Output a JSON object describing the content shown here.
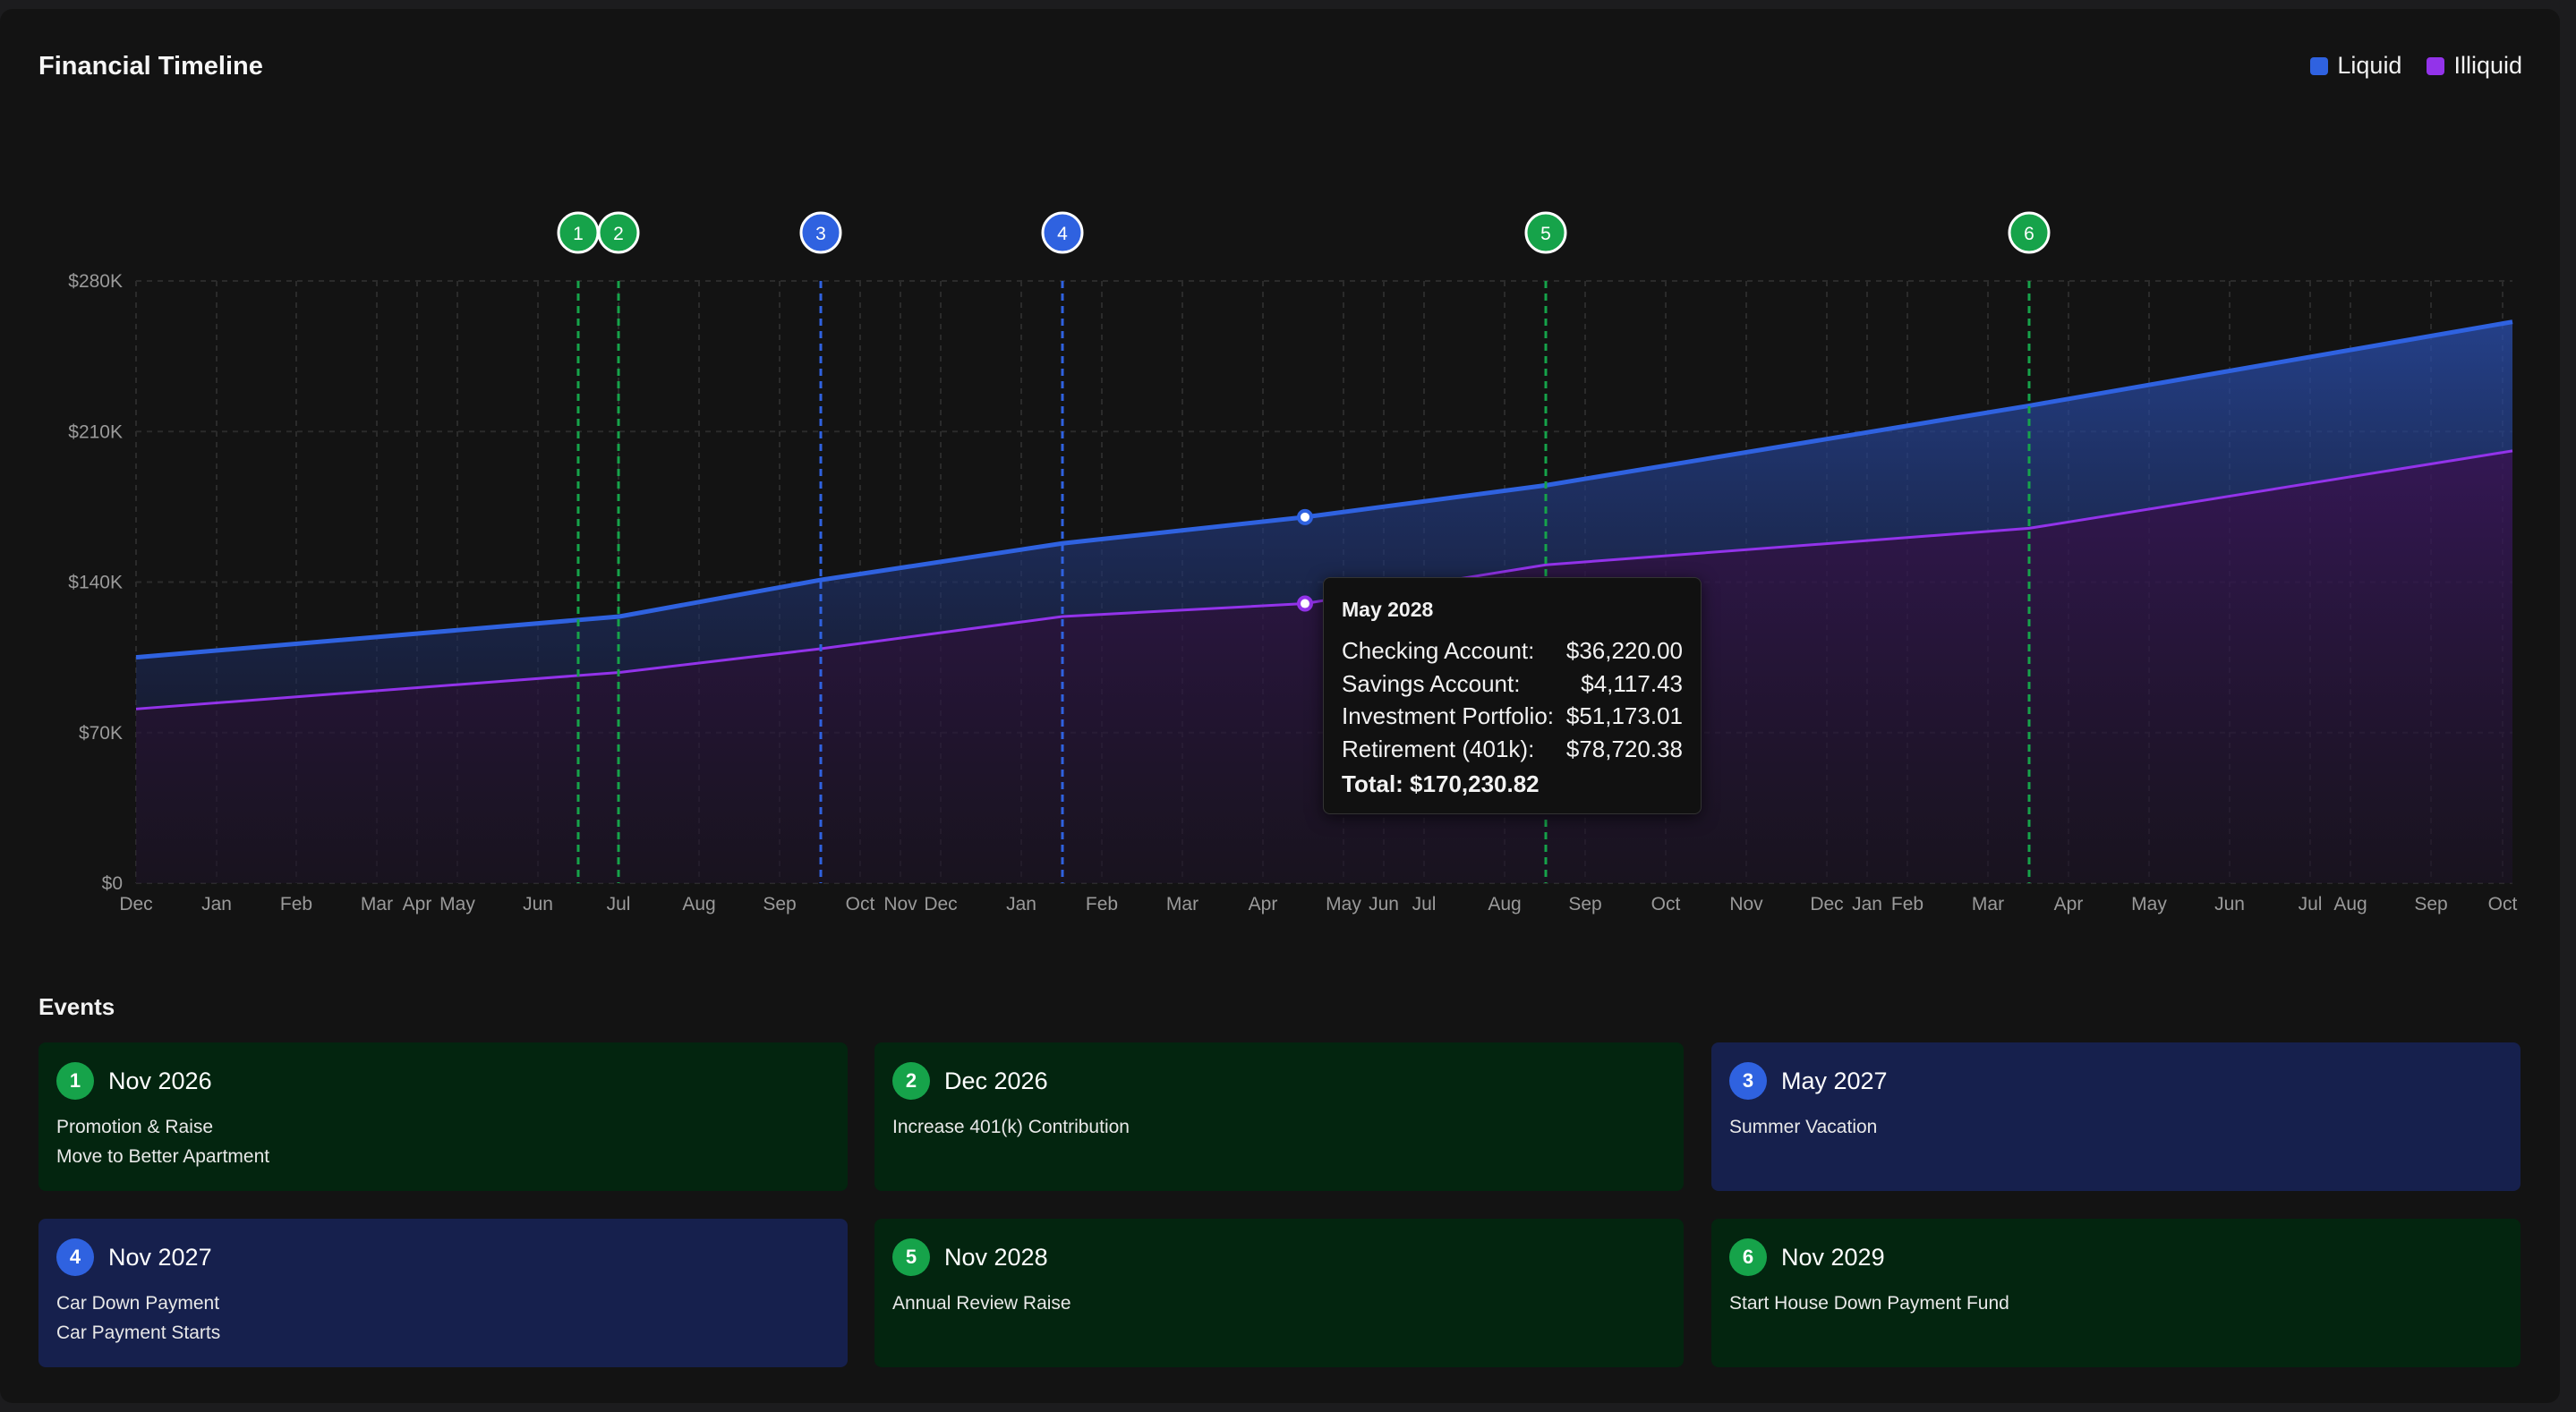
{
  "page": {
    "title": "Financial Timeline",
    "events_heading": "Events"
  },
  "legend": [
    {
      "label": "Liquid",
      "color": "#2f62e0"
    },
    {
      "label": "Illiquid",
      "color": "#9333ea"
    }
  ],
  "chart_data": {
    "type": "area",
    "title": "Financial Timeline",
    "x_tick_labels": [
      "Dec",
      "Jan",
      "Feb",
      "Mar",
      "Apr",
      "May",
      "Jun",
      "Jul",
      "Aug",
      "Sep",
      "Oct",
      "Nov",
      "Dec",
      "Jan",
      "Feb",
      "Mar",
      "Apr",
      "May",
      "Jun",
      "Jul",
      "Aug",
      "Sep",
      "Oct",
      "Nov",
      "Dec",
      "Jan",
      "Feb",
      "Mar",
      "Apr",
      "May",
      "Jun",
      "Jul",
      "Aug",
      "Sep",
      "Oct"
    ],
    "y_tick_labels": [
      "$0",
      "$70K",
      "$140K",
      "$210K",
      "$280K"
    ],
    "ylim": [
      0,
      280000
    ],
    "grid": true,
    "legend_position": "top-right",
    "series": [
      {
        "name": "Liquid",
        "color": "#2f62e0",
        "values": [
          105000,
          124000,
          141000,
          158000,
          170230,
          185000,
          222000,
          261000
        ]
      },
      {
        "name": "Illiquid",
        "color": "#9333ea",
        "values": [
          81000,
          98000,
          109000,
          124000,
          130000,
          148000,
          165000,
          201000
        ]
      }
    ],
    "markers": [
      {
        "num": "1",
        "color": "#16a34a"
      },
      {
        "num": "2",
        "color": "#16a34a"
      },
      {
        "num": "3",
        "color": "#2f62e0"
      },
      {
        "num": "4",
        "color": "#2f62e0"
      },
      {
        "num": "5",
        "color": "#16a34a"
      },
      {
        "num": "6",
        "color": "#16a34a"
      }
    ]
  },
  "tooltip": {
    "title": "May 2028",
    "rows": [
      {
        "label": "Checking Account:",
        "value": "$36,220.00"
      },
      {
        "label": "Savings Account:",
        "value": "$4,117.43"
      },
      {
        "label": "Investment Portfolio:",
        "value": "$51,173.01"
      },
      {
        "label": "Retirement (401k):",
        "value": "$78,720.38"
      }
    ],
    "total": "Total: $170,230.82"
  },
  "events": [
    {
      "num": "1",
      "date": "Nov 2026",
      "lines": [
        "Promotion & Raise",
        "Move to Better Apartment"
      ],
      "type": "green"
    },
    {
      "num": "2",
      "date": "Dec 2026",
      "lines": [
        "Increase 401(k) Contribution"
      ],
      "type": "green"
    },
    {
      "num": "3",
      "date": "May 2027",
      "lines": [
        "Summer Vacation"
      ],
      "type": "blue"
    },
    {
      "num": "4",
      "date": "Nov 2027",
      "lines": [
        "Car Down Payment",
        "Car Payment Starts"
      ],
      "type": "blue"
    },
    {
      "num": "5",
      "date": "Nov 2028",
      "lines": [
        "Annual Review Raise"
      ],
      "type": "green"
    },
    {
      "num": "6",
      "date": "Nov 2029",
      "lines": [
        "Start House Down Payment Fund"
      ],
      "type": "green"
    }
  ],
  "colors": {
    "green_card": "#03250f",
    "blue_card": "#16204d",
    "green_badge": "#16a34a",
    "blue_badge": "#2f62e0"
  }
}
